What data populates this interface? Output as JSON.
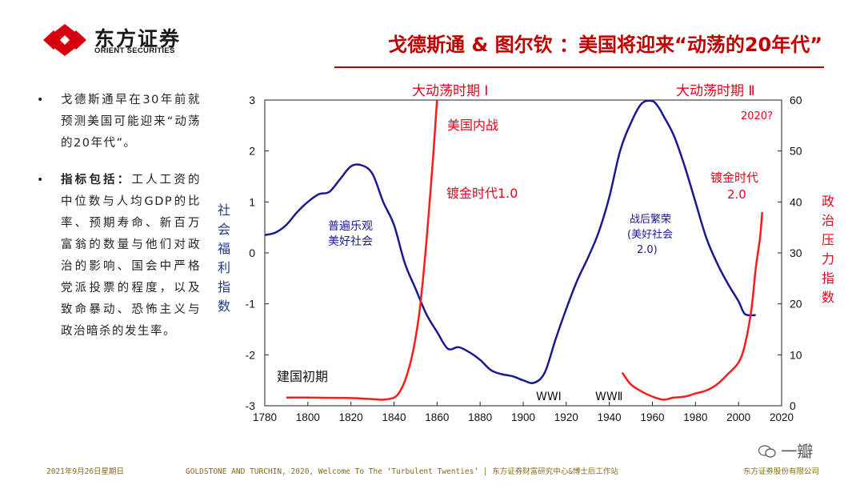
{
  "header": {
    "logo_cn": "东方证券",
    "logo_en": "ORIENT SECURITIES",
    "title": "戈德斯通 & 图尔钦 ：美国将迎来“动荡的20年代”"
  },
  "bullets": [
    {
      "bold": "",
      "text": "戈德斯通早在30年前就预测美国可能迎来“动荡的20年代”。"
    },
    {
      "bold": "指标包括：",
      "text": "工人工资的中位数与人均GDP的比率、预期寿命、新百万富翁的数量与他们对政治的影响、国会中严格党派投票的程度，以及致命暴动、恐怖主义与政治暗杀的发生率。"
    }
  ],
  "chart_data": {
    "type": "line",
    "x_ticks": [
      1780,
      1800,
      1820,
      1840,
      1860,
      1880,
      1900,
      1920,
      1940,
      1960,
      1980,
      2000,
      2020
    ],
    "xlim": [
      1780,
      2020
    ],
    "y_left": {
      "label": "社会福利指数",
      "ticks": [
        3,
        2,
        1,
        0,
        -1,
        -2,
        -3
      ],
      "lim": [
        -3,
        3
      ]
    },
    "y_right": {
      "label": "政治压力指数",
      "ticks": [
        60,
        50,
        40,
        30,
        20,
        10,
        0
      ],
      "lim": [
        0,
        60
      ]
    },
    "series": [
      {
        "name": "社会福利指数",
        "axis": "left",
        "color": "#1a1a8c",
        "x": [
          1780,
          1785,
          1790,
          1795,
          1800,
          1805,
          1810,
          1815,
          1820,
          1825,
          1830,
          1835,
          1840,
          1845,
          1850,
          1855,
          1860,
          1865,
          1870,
          1875,
          1880,
          1885,
          1890,
          1895,
          1900,
          1905,
          1910,
          1915,
          1920,
          1925,
          1930,
          1935,
          1940,
          1945,
          1950,
          1955,
          1960,
          1963,
          1965,
          1970,
          1975,
          1980,
          1985,
          1990,
          1995,
          2000,
          2003,
          2008
        ],
        "y": [
          0.35,
          0.4,
          0.55,
          0.8,
          1.0,
          1.15,
          1.2,
          1.45,
          1.7,
          1.72,
          1.55,
          1.0,
          0.55,
          -0.2,
          -0.7,
          -1.2,
          -1.55,
          -1.88,
          -1.85,
          -1.95,
          -2.1,
          -2.3,
          -2.38,
          -2.42,
          -2.5,
          -2.55,
          -2.35,
          -1.7,
          -1.1,
          -0.55,
          -0.1,
          0.4,
          1.1,
          2.0,
          2.55,
          2.93,
          2.98,
          2.85,
          2.7,
          2.3,
          1.7,
          1.0,
          0.3,
          -0.2,
          -0.6,
          -0.95,
          -1.2,
          -1.22
        ]
      },
      {
        "name": "政治压力指数 I",
        "axis": "right",
        "color": "#ff1a1a",
        "x": [
          1790,
          1800,
          1810,
          1820,
          1830,
          1835,
          1840,
          1843,
          1846,
          1849,
          1852,
          1855,
          1858,
          1860
        ],
        "y": [
          1.6,
          1.6,
          1.55,
          1.5,
          1.3,
          1.2,
          1.6,
          3.0,
          6.0,
          11.0,
          19.0,
          32.0,
          48.0,
          60.0
        ]
      },
      {
        "name": "政治压力指数 II",
        "axis": "right",
        "color": "#ff1a1a",
        "x": [
          1946,
          1950,
          1955,
          1960,
          1965,
          1970,
          1975,
          1980,
          1985,
          1990,
          1995,
          2000,
          2003,
          2006,
          2008,
          2010,
          2011
        ],
        "y": [
          6.5,
          4.2,
          2.8,
          1.8,
          1.2,
          1.6,
          1.8,
          2.4,
          3.0,
          4.2,
          6.2,
          8.5,
          12.0,
          19.0,
          27.0,
          33.0,
          38.0
        ]
      }
    ],
    "annotations": {
      "period1": "大动荡时期 Ⅰ",
      "period2": "大动荡时期 Ⅱ",
      "civil_war": "美国内战",
      "gilded1": "镀金时代1.0",
      "gilded2_l1": "镀金时代",
      "gilded2_l2": "2.0",
      "y2020": "2020?",
      "optimism_l1": "普遍乐观",
      "optimism_l2": "美好社会",
      "postwar_l1": "战后繁荣",
      "postwar_l2": "(美好社会",
      "postwar_l3": "2.0)",
      "founding": "建国初期",
      "ww1": "WWⅠ",
      "ww2": "WWⅡ"
    }
  },
  "footer": {
    "date": "2021年9月26日星期日",
    "source": "GOLDSTONE AND TURCHIN, 2020, Welcome To The ‘Turbulent Twenties’ | 东方证券财富研究中心&博士后工作站",
    "company": "东方证券股份有限公司"
  },
  "watermark": "一瓣",
  "colors": {
    "brand_red": "#c00000",
    "line_blue": "#1a1a8c",
    "line_red": "#ff1a1a",
    "annot_red": "#e8001c"
  }
}
